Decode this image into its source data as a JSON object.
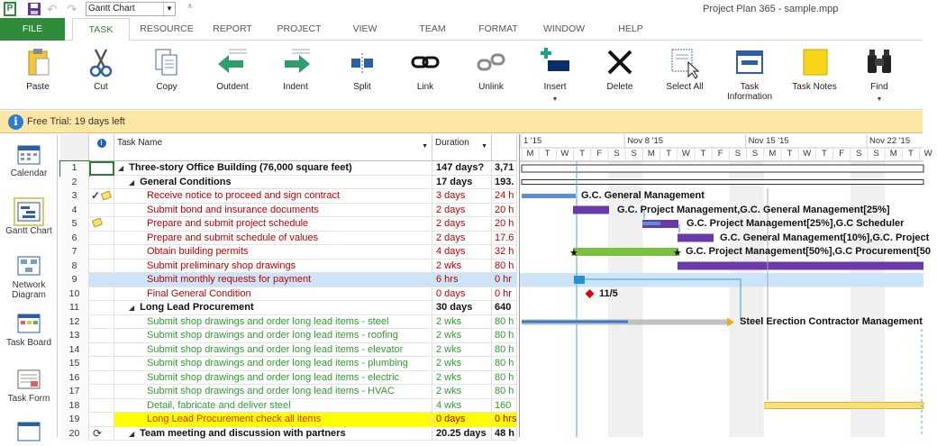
{
  "qat": {
    "view": "Gantt Chart",
    "more": "⩡"
  },
  "app_title": "Project Plan 365 - sample.mpp",
  "tabs": [
    "FILE",
    "TASK",
    "RESOURCE",
    "REPORT",
    "PROJECT",
    "VIEW",
    "TEAM",
    "FORMAT",
    "WINDOW",
    "HELP"
  ],
  "ribbon": [
    {
      "label": "Paste",
      "icon": "clipboard-icon"
    },
    {
      "label": "Cut",
      "icon": "scissors-icon"
    },
    {
      "label": "Copy",
      "icon": "copy-icon"
    },
    {
      "label": "Outdent",
      "icon": "outdent-icon"
    },
    {
      "label": "Indent",
      "icon": "indent-icon"
    },
    {
      "label": "Split",
      "icon": "split-icon"
    },
    {
      "label": "Link",
      "icon": "link-icon"
    },
    {
      "label": "Unlink",
      "icon": "unlink-icon"
    },
    {
      "label": "Insert",
      "icon": "insert-icon"
    },
    {
      "label": "Delete",
      "icon": "delete-icon"
    },
    {
      "label": "Select All",
      "icon": "select-all-icon"
    },
    {
      "label": "Task\nInformation",
      "icon": "task-info-icon"
    },
    {
      "label": "Task Notes",
      "icon": "task-notes-icon"
    },
    {
      "label": "Find",
      "icon": "binoculars-icon"
    }
  ],
  "trial": "Free Trial: 19 days left",
  "sidebar": [
    "Calendar",
    "Gantt Chart",
    "Network\nDiagram",
    "Task Board",
    "Task Form"
  ],
  "grid": {
    "headers": {
      "info": "i",
      "name": "Task Name",
      "duration": "Duration"
    },
    "rows": [
      {
        "id": "1",
        "name": "Three-story Office Building (76,000 square feet)",
        "dur": "147 days?",
        "work": "3,71",
        "level": 0,
        "style": "bold",
        "summary": true
      },
      {
        "id": "2",
        "name": "General Conditions",
        "dur": "17 days",
        "work": "193.",
        "level": 1,
        "style": "bold",
        "summary": true
      },
      {
        "id": "3",
        "name": "Receive notice to proceed and sign contract",
        "dur": "3 days",
        "work": "24 h",
        "level": 2,
        "style": "red",
        "ind": "check-note"
      },
      {
        "id": "4",
        "name": "Submit bond and insurance documents",
        "dur": "2 days",
        "work": "20 h",
        "level": 2,
        "style": "red"
      },
      {
        "id": "5",
        "name": "Prepare and submit project schedule",
        "dur": "2 days",
        "work": "20 h",
        "level": 2,
        "style": "red",
        "ind": "note"
      },
      {
        "id": "6",
        "name": "Prepare and submit schedule of values",
        "dur": "2 days",
        "work": "17.6",
        "level": 2,
        "style": "red"
      },
      {
        "id": "7",
        "name": "Obtain building permits",
        "dur": "4 days",
        "work": "32 h",
        "level": 2,
        "style": "red"
      },
      {
        "id": "8",
        "name": "Submit preliminary shop drawings",
        "dur": "2 wks",
        "work": "80 h",
        "level": 2,
        "style": "red"
      },
      {
        "id": "9",
        "name": "Submit monthly requests for payment",
        "dur": "6 hrs",
        "work": "0 hr",
        "level": 2,
        "style": "red",
        "sel": true
      },
      {
        "id": "10",
        "name": "Final General Condition",
        "dur": "0 days",
        "work": "0 hr",
        "level": 2,
        "style": "red"
      },
      {
        "id": "11",
        "name": "Long Lead Procurement",
        "dur": "30 days",
        "work": "640",
        "level": 1,
        "style": "bold",
        "summary": true
      },
      {
        "id": "12",
        "name": "Submit shop drawings and order long lead items - steel",
        "dur": "2 wks",
        "work": "80 h",
        "level": 2,
        "style": "green"
      },
      {
        "id": "13",
        "name": "Submit shop drawings and order long lead items - roofing",
        "dur": "2 wks",
        "work": "80 h",
        "level": 2,
        "style": "green"
      },
      {
        "id": "14",
        "name": "Submit shop drawings and order long lead items - elevator",
        "dur": "2 wks",
        "work": "80 h",
        "level": 2,
        "style": "green"
      },
      {
        "id": "15",
        "name": "Submit shop drawings and order long lead items - plumbing",
        "dur": "2 wks",
        "work": "80 h",
        "level": 2,
        "style": "green"
      },
      {
        "id": "16",
        "name": "Submit shop drawings and order long lead items - electric",
        "dur": "2 wks",
        "work": "80 h",
        "level": 2,
        "style": "green"
      },
      {
        "id": "17",
        "name": "Submit shop drawings and order long lead items - HVAC",
        "dur": "2 wks",
        "work": "80 h",
        "level": 2,
        "style": "green"
      },
      {
        "id": "18",
        "name": "Detail, fabricate and deliver steel",
        "dur": "4 wks",
        "work": "160",
        "level": 2,
        "style": "green"
      },
      {
        "id": "19",
        "name": "Long Lead Procurement check all items",
        "dur": "0 days",
        "work": "0 hrs",
        "level": 2,
        "style": "hl"
      },
      {
        "id": "20",
        "name": "Team meeting and discussion with partners",
        "dur": "20.25 days",
        "work": "48 h",
        "level": 1,
        "style": "bold",
        "summary": true,
        "ind": "recurring"
      }
    ]
  },
  "timeline": {
    "weeks": [
      {
        "label": "1 '15",
        "day": 0
      },
      {
        "label": "Nov 8 '15",
        "day": 6
      },
      {
        "label": "Nov 15 '15",
        "day": 13
      },
      {
        "label": "Nov 22 '15",
        "day": 20
      }
    ],
    "days": [
      "M",
      "T",
      "W",
      "T",
      "F",
      "S",
      "S",
      "M",
      "T",
      "W",
      "T",
      "F",
      "S",
      "S",
      "M",
      "T",
      "W",
      "T",
      "F",
      "S",
      "S",
      "M",
      "T",
      "W"
    ],
    "labels": [
      {
        "row": 3,
        "text": "G.C. General Management"
      },
      {
        "row": 4,
        "text": "G.C. Project Management,G.C. General Management[25%]"
      },
      {
        "row": 5,
        "text": "G.C. Project Management[25%],G.C Scheduler"
      },
      {
        "row": 6,
        "text": "G.C. General Management[10%],G.C. Project"
      },
      {
        "row": 7,
        "text": "G.C. Project Management[50%],G.C Procurement[50"
      },
      {
        "row": 10,
        "text": "11/5"
      },
      {
        "row": 12,
        "text": "Steel Erection Contractor Management"
      }
    ]
  }
}
